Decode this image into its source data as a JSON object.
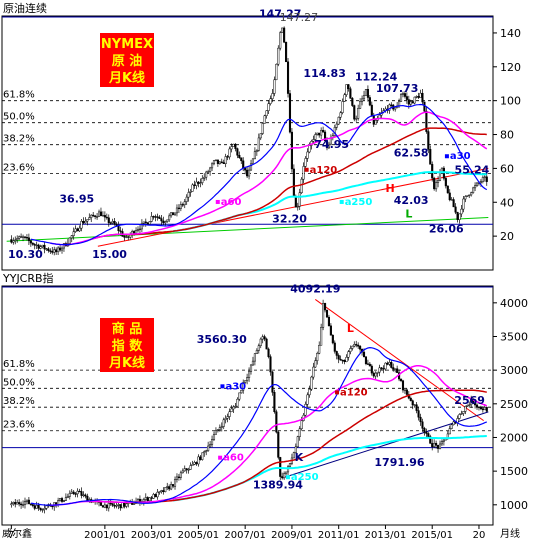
{
  "colors": {
    "background": "#ffffff",
    "candle_up": "#000000",
    "candle_down": "#000000",
    "ma30": "#0000ff",
    "ma60": "#ff00ff",
    "ma120": "#cc0000",
    "ma250": "#00ffff",
    "fib_line": "#000000",
    "axis_line": "#0000aa",
    "badge_bg": "#ff0000",
    "badge_text": "#ffff00",
    "label_blue": "#000080",
    "trend_red": "#ff0000",
    "trend_green": "#00cc00"
  },
  "chart_data": [
    {
      "type": "candlestick",
      "title": "原油连续",
      "badge": [
        "NYMEX",
        "原 油",
        "月K线"
      ],
      "ylim": [
        0,
        150
      ],
      "yticks": [
        20,
        40,
        60,
        80,
        100,
        120,
        140
      ],
      "fib_levels": [
        {
          "label": "61.8%",
          "value": 100
        },
        {
          "label": "50.0%",
          "value": 87
        },
        {
          "label": "38.2%",
          "value": 74
        },
        {
          "label": "23.6%",
          "value": 57
        }
      ],
      "price_labels": [
        {
          "text": "147.27",
          "x": 2008.5,
          "y": 149
        },
        {
          "text": "147.27",
          "x": 2009.3,
          "y": 147,
          "gray": true
        },
        {
          "text": "36.95",
          "x": 1999.8,
          "y": 40
        },
        {
          "text": "10.30",
          "x": 1997.6,
          "y": 7
        },
        {
          "text": "15.00",
          "x": 2001.2,
          "y": 7
        },
        {
          "text": "32.20",
          "x": 2008.9,
          "y": 28
        },
        {
          "text": "114.83",
          "x": 2010.4,
          "y": 114
        },
        {
          "text": "112.24",
          "x": 2012.6,
          "y": 112
        },
        {
          "text": "107.73",
          "x": 2013.5,
          "y": 105
        },
        {
          "text": "74.95",
          "x": 2010.7,
          "y": 72
        },
        {
          "text": "62.58",
          "x": 2014.1,
          "y": 67
        },
        {
          "text": "42.03",
          "x": 2014.1,
          "y": 39
        },
        {
          "text": "26.06",
          "x": 2015.6,
          "y": 22
        },
        {
          "text": "55.24",
          "x": 2016.7,
          "y": 57
        }
      ],
      "ma_labels": [
        {
          "text": "a60",
          "x": 2006.0,
          "y": 39,
          "ma": "ma60"
        },
        {
          "text": "a120",
          "x": 2009.8,
          "y": 58,
          "ma": "ma120"
        },
        {
          "text": "a250",
          "x": 2011.3,
          "y": 39,
          "ma": "ma250"
        },
        {
          "text": "a30",
          "x": 2015.8,
          "y": 66,
          "ma": "ma30"
        }
      ],
      "markers": [
        {
          "text": "H",
          "x": 2013.2,
          "y": 46,
          "color": "#ff0000"
        },
        {
          "text": "L",
          "x": 2014.0,
          "y": 31,
          "color": "#00aa00"
        }
      ],
      "trendlines": [
        {
          "from": [
            1996.8,
            17
          ],
          "to": [
            2017.4,
            31
          ],
          "color": "#00cc00"
        },
        {
          "from": [
            2000.7,
            14
          ],
          "to": [
            2017.4,
            60
          ],
          "color": "#ff0000"
        }
      ],
      "hline": 27,
      "ohlc_path": [
        [
          1997.0,
          18
        ],
        [
          1997.5,
          19
        ],
        [
          1998.0,
          15
        ],
        [
          1998.6,
          12
        ],
        [
          1998.9,
          10.5
        ],
        [
          1999.3,
          15
        ],
        [
          1999.7,
          22
        ],
        [
          2000.0,
          28
        ],
        [
          2000.4,
          31
        ],
        [
          2000.8,
          34
        ],
        [
          2001.0,
          30
        ],
        [
          2001.4,
          27
        ],
        [
          2001.8,
          20
        ],
        [
          2001.9,
          18
        ],
        [
          2002.3,
          24
        ],
        [
          2002.8,
          28
        ],
        [
          2003.1,
          33
        ],
        [
          2003.5,
          29
        ],
        [
          2004.0,
          34
        ],
        [
          2004.4,
          40
        ],
        [
          2004.8,
          50
        ],
        [
          2005.2,
          54
        ],
        [
          2005.7,
          64
        ],
        [
          2006.0,
          62
        ],
        [
          2006.5,
          74
        ],
        [
          2006.9,
          61
        ],
        [
          2007.1,
          55
        ],
        [
          2007.5,
          72
        ],
        [
          2007.9,
          95
        ],
        [
          2008.2,
          105
        ],
        [
          2008.5,
          140
        ],
        [
          2008.6,
          145
        ],
        [
          2008.8,
          115
        ],
        [
          2009.0,
          60
        ],
        [
          2009.1,
          42
        ],
        [
          2009.2,
          34
        ],
        [
          2009.5,
          62
        ],
        [
          2009.9,
          78
        ],
        [
          2010.3,
          82
        ],
        [
          2010.5,
          72
        ],
        [
          2010.9,
          85
        ],
        [
          2011.2,
          100
        ],
        [
          2011.35,
          112
        ],
        [
          2011.7,
          88
        ],
        [
          2011.9,
          98
        ],
        [
          2012.2,
          106
        ],
        [
          2012.5,
          85
        ],
        [
          2012.8,
          92
        ],
        [
          2013.1,
          96
        ],
        [
          2013.5,
          96
        ],
        [
          2013.7,
          106
        ],
        [
          2014.0,
          98
        ],
        [
          2014.5,
          104
        ],
        [
          2014.7,
          90
        ],
        [
          2014.9,
          63
        ],
        [
          2015.1,
          48
        ],
        [
          2015.4,
          60
        ],
        [
          2015.6,
          47
        ],
        [
          2015.9,
          38
        ],
        [
          2016.1,
          30
        ],
        [
          2016.3,
          40
        ],
        [
          2016.6,
          46
        ],
        [
          2016.9,
          50
        ],
        [
          2017.2,
          54
        ],
        [
          2017.3,
          53
        ]
      ]
    },
    {
      "type": "candlestick",
      "title": "YYJCRB指",
      "badge": [
        "商 品",
        "指 数",
        "月K线"
      ],
      "ylim": [
        700,
        4250
      ],
      "yticks": [
        1000,
        1500,
        2000,
        2500,
        3000,
        3500,
        4000
      ],
      "fib_levels": [
        {
          "label": "61.8%",
          "value": 3000
        },
        {
          "label": "50.0%",
          "value": 2730
        },
        {
          "label": "38.2%",
          "value": 2450
        },
        {
          "label": "23.6%",
          "value": 2100
        }
      ],
      "price_labels": [
        {
          "text": "4092.19",
          "x": 2010.0,
          "y": 4150
        },
        {
          "text": "3560.30",
          "x": 2006.0,
          "y": 3400
        },
        {
          "text": "1389.94",
          "x": 2008.4,
          "y": 1240
        },
        {
          "text": "1791.96",
          "x": 2013.6,
          "y": 1580
        },
        {
          "text": "2569",
          "x": 2016.6,
          "y": 2500
        }
      ],
      "ma_labels": [
        {
          "text": "a30",
          "x": 2006.2,
          "y": 2730,
          "ma": "ma30"
        },
        {
          "text": "a60",
          "x": 2006.1,
          "y": 1670,
          "ma": "ma60"
        },
        {
          "text": "a120",
          "x": 2011.1,
          "y": 2640,
          "ma": "ma120"
        },
        {
          "text": "a250",
          "x": 2009.0,
          "y": 1380,
          "ma": "ma250"
        }
      ],
      "markers": [
        {
          "text": "L",
          "x": 2011.5,
          "y": 3570,
          "color": "#ff0000"
        },
        {
          "text": "K",
          "x": 2009.3,
          "y": 1650,
          "color": "#000080"
        }
      ],
      "trendlines": [
        {
          "from": [
            2010.0,
            4050
          ],
          "to": [
            2017.2,
            2250
          ],
          "color": "#ff0000"
        },
        {
          "from": [
            2008.6,
            1400
          ],
          "to": [
            2017.4,
            2380
          ],
          "color": "#000080"
        }
      ],
      "hline": 1850,
      "xticks": [
        "7",
        "2001/01",
        "2003/01",
        "2005/01",
        "2007/01",
        "2009/01",
        "2011/01",
        "2013/01",
        "2015/01",
        "20"
      ],
      "xtick_pos": [
        1997.0,
        2001.0,
        2003.0,
        2005.0,
        2007.0,
        2009.0,
        2011.0,
        2013.0,
        2015.0,
        2017.0
      ],
      "ohlc_path": [
        [
          1997.0,
          1000
        ],
        [
          1997.6,
          1050
        ],
        [
          1998.2,
          950
        ],
        [
          1998.7,
          1000
        ],
        [
          1999.2,
          1080
        ],
        [
          1999.8,
          1200
        ],
        [
          2000.2,
          1100
        ],
        [
          2000.8,
          1000
        ],
        [
          2001.4,
          980
        ],
        [
          2001.9,
          1000
        ],
        [
          2002.4,
          1050
        ],
        [
          2002.9,
          1100
        ],
        [
          2003.4,
          1180
        ],
        [
          2003.9,
          1300
        ],
        [
          2004.3,
          1480
        ],
        [
          2004.8,
          1600
        ],
        [
          2005.2,
          1750
        ],
        [
          2005.7,
          2050
        ],
        [
          2006.1,
          2250
        ],
        [
          2006.6,
          2500
        ],
        [
          2006.9,
          2800
        ],
        [
          2007.2,
          3000
        ],
        [
          2007.6,
          3400
        ],
        [
          2007.8,
          3500
        ],
        [
          2008.0,
          3200
        ],
        [
          2008.2,
          2600
        ],
        [
          2008.4,
          1800
        ],
        [
          2008.5,
          1400
        ],
        [
          2008.8,
          1500
        ],
        [
          2009.2,
          1900
        ],
        [
          2009.6,
          2500
        ],
        [
          2009.9,
          3000
        ],
        [
          2010.2,
          3400
        ],
        [
          2010.35,
          4050
        ],
        [
          2010.6,
          3600
        ],
        [
          2010.9,
          3200
        ],
        [
          2011.2,
          3100
        ],
        [
          2011.5,
          3300
        ],
        [
          2011.8,
          3400
        ],
        [
          2012.1,
          3150
        ],
        [
          2012.5,
          2950
        ],
        [
          2012.9,
          3050
        ],
        [
          2013.2,
          3100
        ],
        [
          2013.5,
          2950
        ],
        [
          2013.8,
          2700
        ],
        [
          2014.1,
          2550
        ],
        [
          2014.4,
          2350
        ],
        [
          2014.7,
          2050
        ],
        [
          2015.0,
          1900
        ],
        [
          2015.3,
          1850
        ],
        [
          2015.5,
          1950
        ],
        [
          2015.8,
          2150
        ],
        [
          2016.1,
          2300
        ],
        [
          2016.4,
          2450
        ],
        [
          2016.7,
          2550
        ],
        [
          2017.0,
          2450
        ],
        [
          2017.3,
          2420
        ]
      ]
    }
  ],
  "footer": {
    "left_text": "威尔鑫",
    "right_text": "月线"
  }
}
